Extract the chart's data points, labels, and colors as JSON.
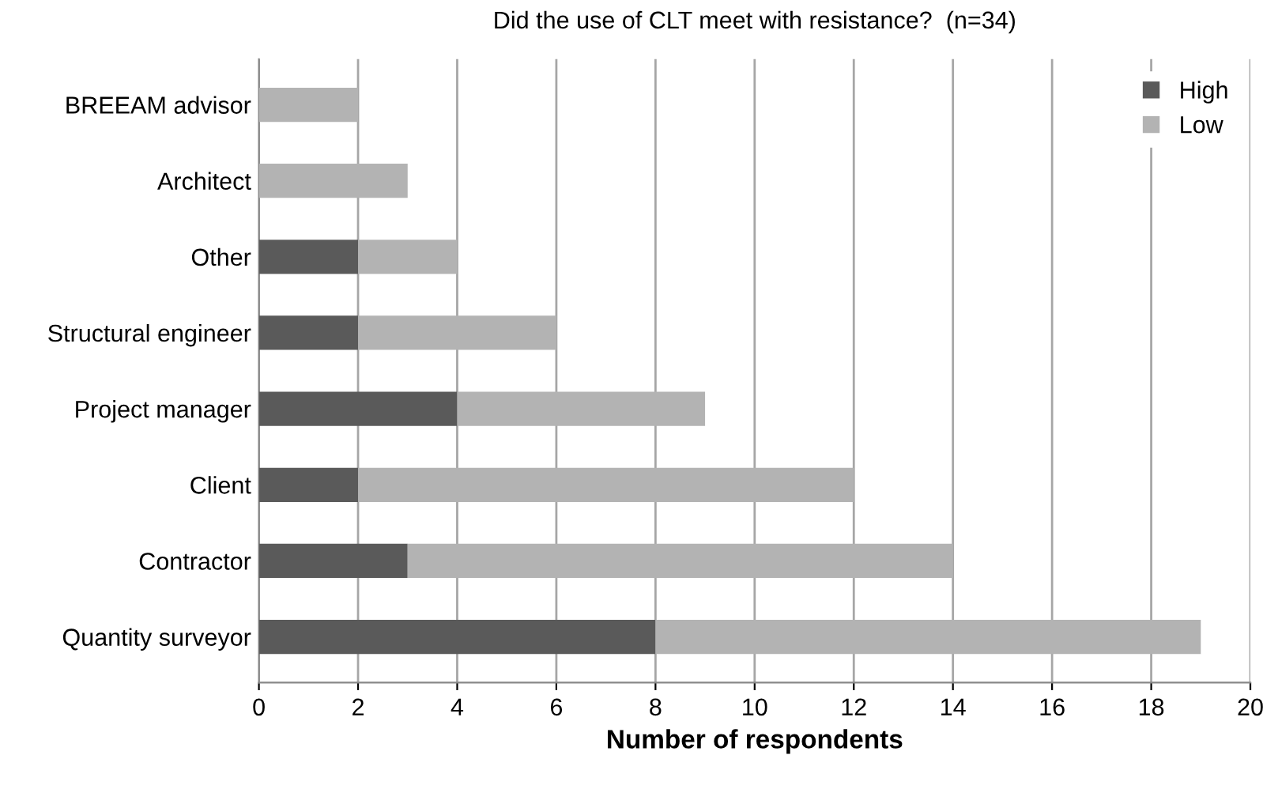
{
  "chart_data": {
    "type": "bar",
    "orientation": "horizontal",
    "stacked": true,
    "title": "Did the use of CLT meet with resistance?  (n=34)",
    "xlabel": "Number of respondents",
    "categories": [
      "BREEAM advisor",
      "Architect",
      "Other",
      "Structural engineer",
      "Project manager",
      "Client",
      "Contractor",
      "Quantity surveyor"
    ],
    "series": [
      {
        "name": "High",
        "color": "#5a5a5a",
        "values": [
          0,
          0,
          2,
          2,
          4,
          2,
          3,
          8
        ]
      },
      {
        "name": "Low",
        "color": "#b3b3b3",
        "values": [
          2,
          3,
          2,
          4,
          5,
          10,
          11,
          11
        ]
      }
    ],
    "xlim": [
      0,
      20
    ],
    "xticks": [
      0,
      2,
      4,
      6,
      8,
      10,
      12,
      14,
      16,
      18,
      20
    ],
    "grid": "x",
    "legend": "top right"
  }
}
